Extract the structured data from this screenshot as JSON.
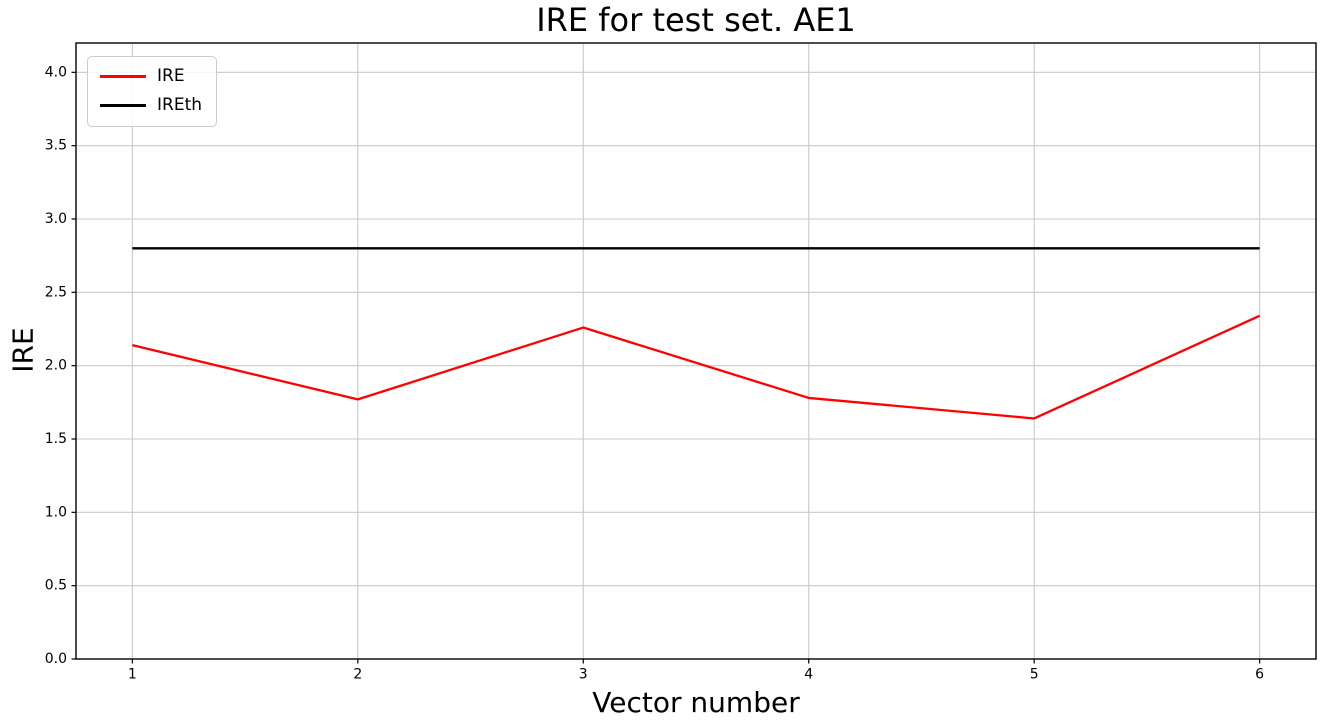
{
  "chart_data": {
    "type": "line",
    "title": "IRE for test set. AE1",
    "xlabel": "Vector number",
    "ylabel": "IRE",
    "x": [
      1,
      2,
      3,
      4,
      5,
      6
    ],
    "series": [
      {
        "name": "IRE",
        "color": "#ff0000",
        "values": [
          2.14,
          1.77,
          2.26,
          1.78,
          1.64,
          2.34
        ]
      },
      {
        "name": "IREth",
        "color": "#000000",
        "values": [
          2.8,
          2.8,
          2.8,
          2.8,
          2.8,
          2.8
        ]
      }
    ],
    "xlim": [
      0.75,
      6.25
    ],
    "ylim": [
      0,
      4.2
    ],
    "x_ticks": [
      1,
      2,
      3,
      4,
      5,
      6
    ],
    "y_ticks": [
      0.0,
      0.5,
      1.0,
      1.5,
      2.0,
      2.5,
      3.0,
      3.5,
      4.0
    ],
    "grid": true,
    "grid_color": "#c9c9c9",
    "legend_position": "upper left",
    "axis_color": "#000000",
    "background_color": "#ffffff"
  }
}
